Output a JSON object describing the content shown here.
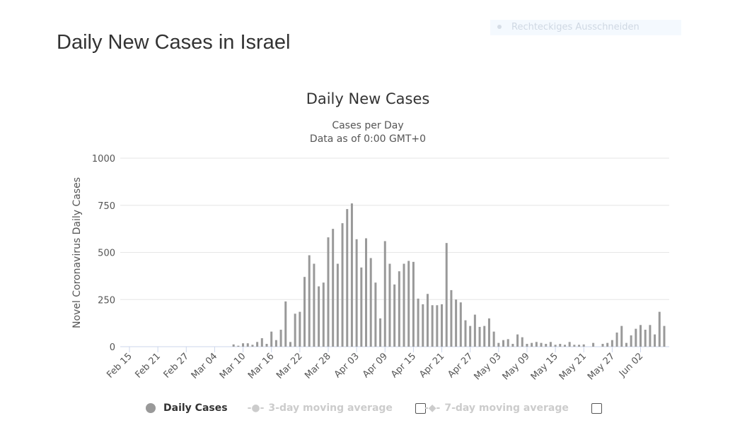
{
  "page": {
    "title": "Daily New Cases in Israel",
    "overlay_label": "Rechteckiges Ausschneiden"
  },
  "chart_data": {
    "type": "bar",
    "title": "Daily New Cases",
    "subtitle_1": "Cases per Day",
    "subtitle_2": "Data as of 0:00 GMT+0",
    "ylabel": "Novel Coronavirus Daily Cases",
    "ylim": [
      0,
      1000
    ],
    "yticks": [
      "0",
      "250",
      "500",
      "750",
      "1000"
    ],
    "start_date": "2020-02-15",
    "xticks": [
      "Feb 15",
      "Feb 21",
      "Feb 27",
      "Mar 04",
      "Mar 10",
      "Mar 16",
      "Mar 22",
      "Mar 28",
      "Apr 03",
      "Apr 09",
      "Apr 15",
      "Apr 21",
      "Apr 27",
      "May 03",
      "May 09",
      "May 15",
      "May 21",
      "May 27",
      "Jun 02"
    ],
    "series_name": "Daily Cases",
    "color": "#999999",
    "values": [
      0,
      0,
      0,
      0,
      0,
      0,
      0,
      0,
      0,
      0,
      0,
      0,
      0,
      0,
      0,
      0,
      0,
      0,
      0,
      0,
      0,
      0,
      12,
      5,
      18,
      18,
      10,
      25,
      45,
      15,
      80,
      35,
      90,
      240,
      25,
      175,
      185,
      370,
      485,
      440,
      320,
      340,
      580,
      625,
      440,
      655,
      730,
      760,
      570,
      420,
      575,
      470,
      340,
      150,
      560,
      440,
      330,
      400,
      440,
      455,
      450,
      255,
      225,
      280,
      220,
      220,
      225,
      550,
      300,
      250,
      235,
      140,
      110,
      170,
      105,
      110,
      150,
      80,
      20,
      35,
      40,
      15,
      65,
      50,
      15,
      20,
      25,
      20,
      15,
      25,
      10,
      15,
      10,
      25,
      10,
      10,
      12,
      0,
      20,
      0,
      15,
      20,
      35,
      75,
      110,
      20,
      60,
      95,
      115,
      90,
      115,
      65,
      185,
      110
    ],
    "legend": [
      {
        "label": "Daily Cases",
        "active": true
      },
      {
        "label": "3-day moving average",
        "active": false
      },
      {
        "label": "7-day moving average",
        "active": false
      }
    ],
    "legend_placement": "bottom"
  }
}
